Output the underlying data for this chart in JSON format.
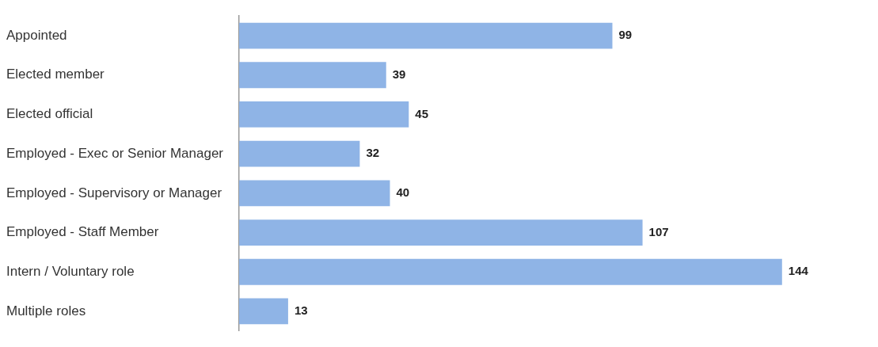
{
  "chart_data": {
    "type": "bar",
    "orientation": "horizontal",
    "categories": [
      "Appointed",
      "Elected member",
      "Elected official",
      "Employed - Exec or Senior Manager",
      "Employed - Supervisory or Manager",
      "Employed - Staff Member",
      "Intern / Voluntary role",
      "Multiple roles"
    ],
    "values": [
      99,
      39,
      45,
      32,
      40,
      107,
      144,
      13
    ],
    "color": "#8fb4e6",
    "data_labels": true
  }
}
